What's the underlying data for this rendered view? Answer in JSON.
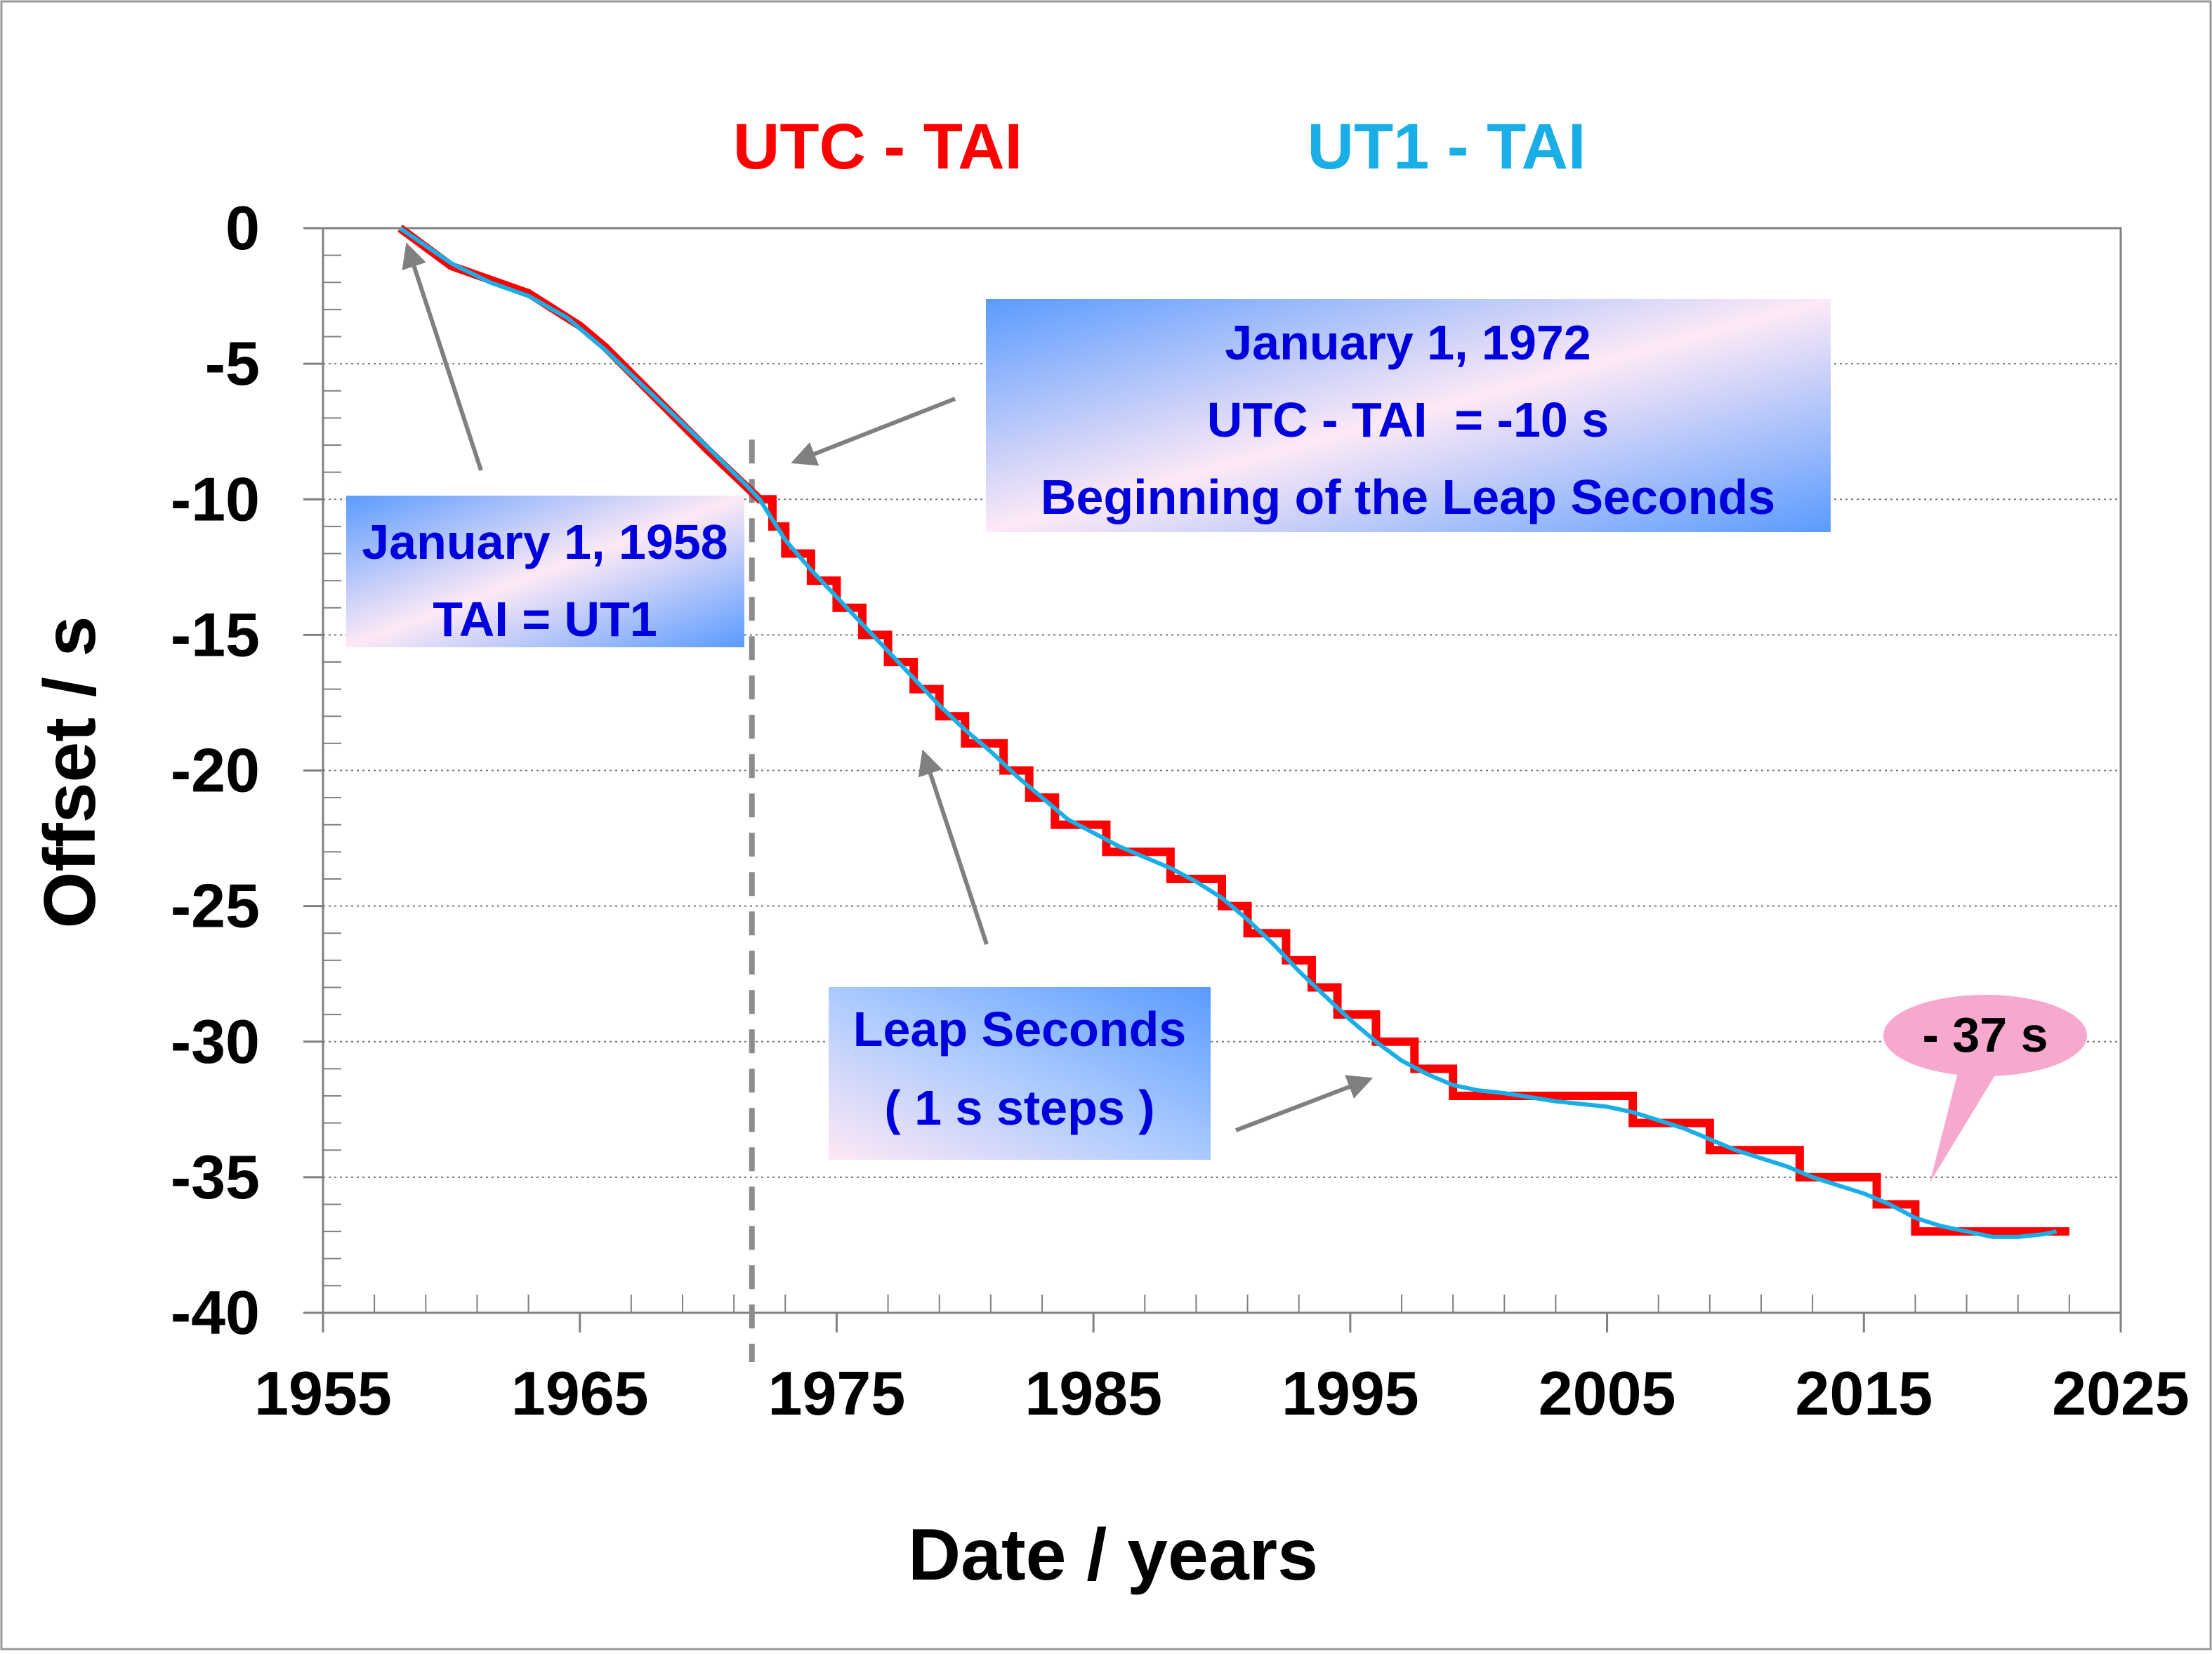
{
  "chart_data": {
    "type": "line",
    "title": "",
    "xlabel": "Date / years",
    "ylabel": "Offset / s",
    "xlim": [
      1955,
      2025
    ],
    "ylim": [
      -40,
      0
    ],
    "x_ticks": [
      1955,
      1965,
      1975,
      1985,
      1995,
      2005,
      2015,
      2025
    ],
    "y_ticks": [
      0,
      -5,
      -10,
      -15,
      -20,
      -25,
      -30,
      -35,
      -40
    ],
    "grid": "horizontal dotted",
    "legend_placement": "top-center",
    "series": [
      {
        "name": "UTC - TAI",
        "color": "#ff0000",
        "style": "step",
        "points": [
          [
            1958.0,
            0.0
          ],
          [
            1960.0,
            -1.4
          ],
          [
            1963.0,
            -2.4
          ],
          [
            1965.0,
            -3.6
          ],
          [
            1966.0,
            -4.4
          ],
          [
            1968.0,
            -6.3
          ],
          [
            1970.0,
            -8.2
          ],
          [
            1972.0,
            -10
          ],
          [
            1972.5,
            -11
          ],
          [
            1973.0,
            -12
          ],
          [
            1974.0,
            -13
          ],
          [
            1975.0,
            -14
          ],
          [
            1976.0,
            -15
          ],
          [
            1977.0,
            -16
          ],
          [
            1978.0,
            -17
          ],
          [
            1979.0,
            -18
          ],
          [
            1980.0,
            -19
          ],
          [
            1981.5,
            -20
          ],
          [
            1982.5,
            -21
          ],
          [
            1983.5,
            -22
          ],
          [
            1985.5,
            -23
          ],
          [
            1988.0,
            -24
          ],
          [
            1990.0,
            -25
          ],
          [
            1991.0,
            -26
          ],
          [
            1992.5,
            -27
          ],
          [
            1993.5,
            -28
          ],
          [
            1994.5,
            -29
          ],
          [
            1996.0,
            -30
          ],
          [
            1997.5,
            -31
          ],
          [
            1999.0,
            -32
          ],
          [
            2006.0,
            -33
          ],
          [
            2009.0,
            -34
          ],
          [
            2012.5,
            -35
          ],
          [
            2015.5,
            -36
          ],
          [
            2017.0,
            -37
          ],
          [
            2023.0,
            -37
          ]
        ]
      },
      {
        "name": "UT1 - TAI",
        "color": "#1aaee6",
        "style": "line",
        "points": [
          [
            1958.0,
            0.0
          ],
          [
            1960.0,
            -1.3
          ],
          [
            1961.5,
            -2.0
          ],
          [
            1963.0,
            -2.5
          ],
          [
            1964.5,
            -3.3
          ],
          [
            1966.0,
            -4.5
          ],
          [
            1968.0,
            -6.3
          ],
          [
            1970.0,
            -8.1
          ],
          [
            1971.5,
            -9.5
          ],
          [
            1972.0,
            -10.0
          ],
          [
            1973.0,
            -11.5
          ],
          [
            1974.0,
            -12.6
          ],
          [
            1975.0,
            -13.6
          ],
          [
            1976.0,
            -14.6
          ],
          [
            1977.0,
            -15.6
          ],
          [
            1978.0,
            -16.6
          ],
          [
            1979.0,
            -17.6
          ],
          [
            1980.0,
            -18.5
          ],
          [
            1981.0,
            -19.3
          ],
          [
            1982.0,
            -20.2
          ],
          [
            1983.0,
            -21.0
          ],
          [
            1984.0,
            -21.8
          ],
          [
            1985.0,
            -22.3
          ],
          [
            1986.0,
            -22.8
          ],
          [
            1987.0,
            -23.2
          ],
          [
            1988.0,
            -23.6
          ],
          [
            1989.0,
            -24.1
          ],
          [
            1990.0,
            -24.7
          ],
          [
            1991.0,
            -25.5
          ],
          [
            1992.0,
            -26.4
          ],
          [
            1993.0,
            -27.4
          ],
          [
            1994.0,
            -28.3
          ],
          [
            1995.0,
            -29.2
          ],
          [
            1996.0,
            -30.0
          ],
          [
            1997.0,
            -30.7
          ],
          [
            1998.0,
            -31.2
          ],
          [
            1999.0,
            -31.6
          ],
          [
            2000.0,
            -31.8
          ],
          [
            2001.0,
            -31.9
          ],
          [
            2003.0,
            -32.2
          ],
          [
            2005.0,
            -32.4
          ],
          [
            2006.0,
            -32.6
          ],
          [
            2007.0,
            -32.9
          ],
          [
            2008.0,
            -33.2
          ],
          [
            2009.0,
            -33.6
          ],
          [
            2010.0,
            -34.0
          ],
          [
            2011.0,
            -34.3
          ],
          [
            2012.0,
            -34.6
          ],
          [
            2013.0,
            -35.0
          ],
          [
            2014.0,
            -35.3
          ],
          [
            2015.0,
            -35.6
          ],
          [
            2016.0,
            -36.0
          ],
          [
            2017.0,
            -36.5
          ],
          [
            2018.0,
            -36.8
          ],
          [
            2019.0,
            -37.0
          ],
          [
            2020.0,
            -37.2
          ],
          [
            2021.0,
            -37.2
          ],
          [
            2022.0,
            -37.1
          ],
          [
            2022.5,
            -37.0
          ]
        ]
      }
    ],
    "reference_line": {
      "x": 1971.7,
      "style": "dashed",
      "color": "#8c8c8c"
    },
    "annotations": [
      {
        "id": "box-1958",
        "lines": [
          "January 1, 1958",
          "TAI = UT1"
        ],
        "points_to": [
          1958.3,
          -0.7
        ]
      },
      {
        "id": "box-1972",
        "lines": [
          "January 1, 1972",
          "UTC - TAI  = -10 s",
          "Beginning of the Leap Seconds"
        ],
        "points_to": [
          1973.4,
          -8.6
        ]
      },
      {
        "id": "box-leap",
        "lines": [
          "Leap Seconds",
          "( 1 s steps )"
        ],
        "points_to": [
          [
            1978.4,
            -19.4
          ],
          [
            1995.7,
            -31.4
          ]
        ]
      },
      {
        "id": "callout-37",
        "text": "- 37 s",
        "points_to": [
          2017.3,
          -35.5
        ]
      }
    ]
  },
  "colors": {
    "utc_tai": "#ff0000",
    "ut1_tai": "#1aaee6",
    "annotation_text": "#0000dd",
    "callout_fill": "#f7a8cf",
    "arrow": "#808080"
  }
}
